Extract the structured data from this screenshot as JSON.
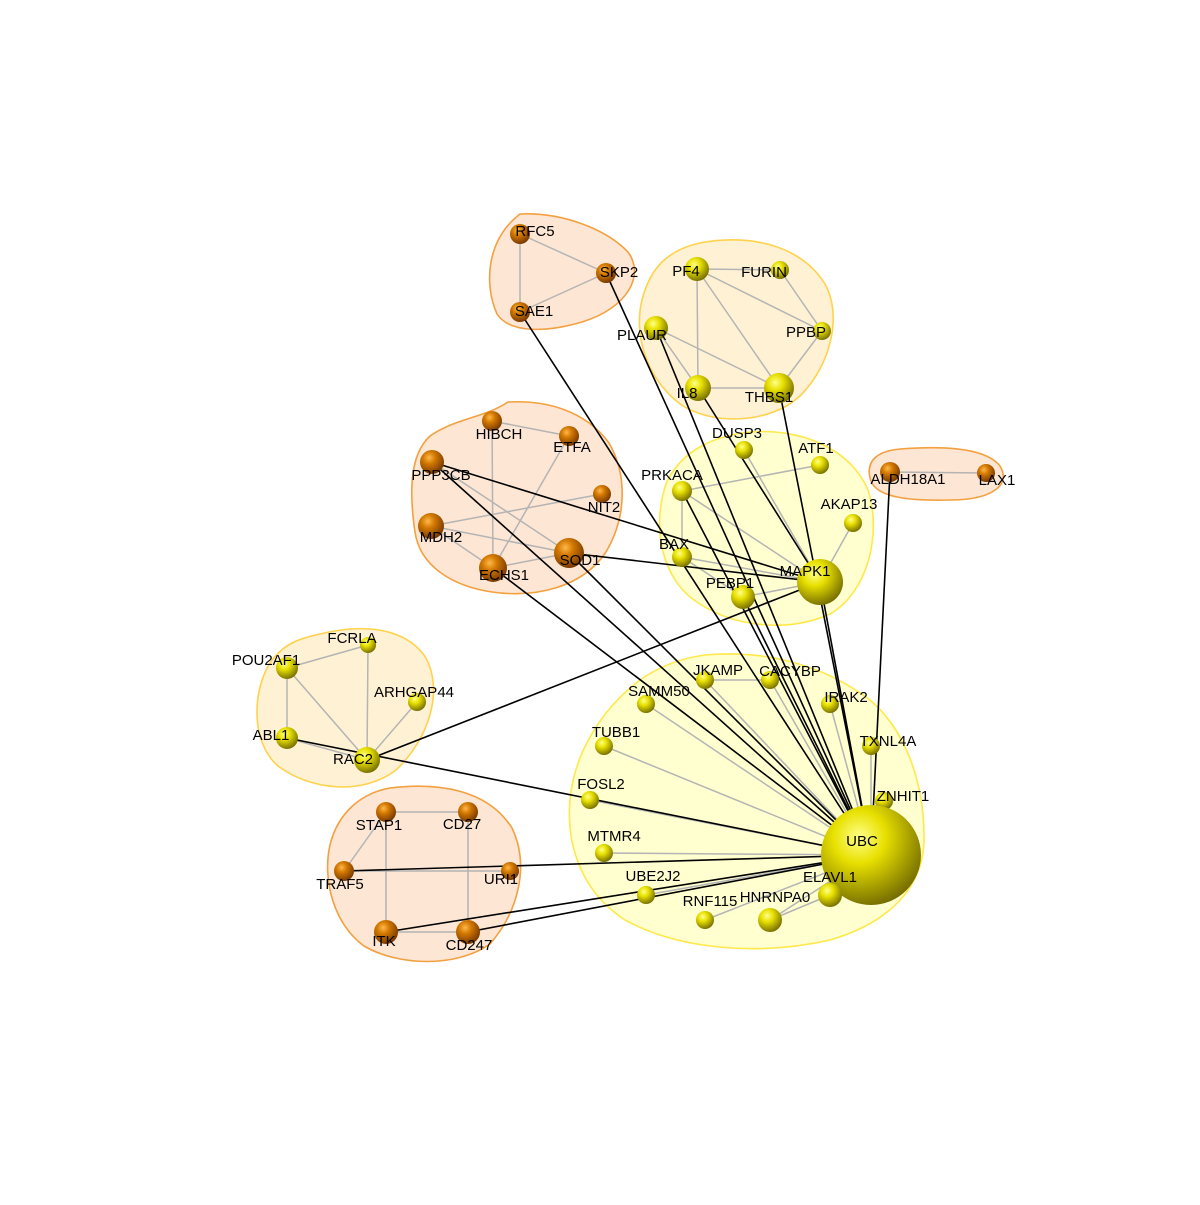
{
  "colors": {
    "yellow_node": "#e8e000",
    "orange_node": "#d27800",
    "yellow_hull_fill": "#ffffc8",
    "yellow_hull_stroke": "#ffe84a",
    "orange_hull_fill": "#fde2cc",
    "orange_hull_stroke": "#f3a040",
    "light_hull_fill": "#fff0cc",
    "light_hull_stroke": "#ffd24d",
    "intra_edge": "#b4b4b4",
    "inter_edge": "#000000"
  },
  "clusters": [
    {
      "name": "cluster-rfc5",
      "theme": "orange",
      "members": [
        "RFC5",
        "SKP2",
        "SAE1"
      ]
    },
    {
      "name": "cluster-pf4",
      "theme": "light",
      "members": [
        "PF4",
        "FURIN",
        "PLAUR",
        "PPBP",
        "IL8",
        "THBS1"
      ]
    },
    {
      "name": "cluster-hibch",
      "theme": "orange",
      "members": [
        "HIBCH",
        "ETFA",
        "PPP3CB",
        "NIT2",
        "MDH2",
        "ECHS1",
        "SOD1"
      ]
    },
    {
      "name": "cluster-mapk1",
      "theme": "yellow",
      "members": [
        "DUSP3",
        "ATF1",
        "PRKACA",
        "AKAP13",
        "BAX",
        "PEBP1",
        "MAPK1"
      ]
    },
    {
      "name": "cluster-aldh18a1",
      "theme": "orange",
      "members": [
        "ALDH18A1",
        "LAX1"
      ]
    },
    {
      "name": "cluster-pou2af1",
      "theme": "light",
      "members": [
        "FCRLA",
        "POU2AF1",
        "ARHGAP44",
        "ABL1",
        "RAC2"
      ]
    },
    {
      "name": "cluster-stap1",
      "theme": "orange",
      "members": [
        "STAP1",
        "CD27",
        "TRAF5",
        "URI1",
        "ITK",
        "CD247"
      ]
    },
    {
      "name": "cluster-ubc",
      "theme": "yellow",
      "members": [
        "JKAMP",
        "CACYBP",
        "SAMM50",
        "IRAK2",
        "TUBB1",
        "TXNL4A",
        "FOSL2",
        "ZNHIT1",
        "MTMR4",
        "UBC",
        "UBE2J2",
        "ELAVL1",
        "RNF115",
        "HNRNPA0"
      ]
    }
  ],
  "nodes": [
    {
      "id": "RFC5",
      "label": "RFC5",
      "color": "orange",
      "size": 1.0
    },
    {
      "id": "SKP2",
      "label": "SKP2",
      "color": "orange",
      "size": 1.0
    },
    {
      "id": "SAE1",
      "label": "SAE1",
      "color": "orange",
      "size": 1.0
    },
    {
      "id": "PF4",
      "label": "PF4",
      "color": "yellow",
      "size": 1.2
    },
    {
      "id": "FURIN",
      "label": "FURIN",
      "color": "yellow",
      "size": 0.9
    },
    {
      "id": "PLAUR",
      "label": "PLAUR",
      "color": "yellow",
      "size": 1.2
    },
    {
      "id": "PPBP",
      "label": "PPBP",
      "color": "yellow",
      "size": 0.9
    },
    {
      "id": "IL8",
      "label": "IL8",
      "color": "yellow",
      "size": 1.3
    },
    {
      "id": "THBS1",
      "label": "THBS1",
      "color": "yellow",
      "size": 1.5
    },
    {
      "id": "HIBCH",
      "label": "HIBCH",
      "color": "orange",
      "size": 1.0
    },
    {
      "id": "ETFA",
      "label": "ETFA",
      "color": "orange",
      "size": 1.0
    },
    {
      "id": "PPP3CB",
      "label": "PPP3CB",
      "color": "orange",
      "size": 1.2
    },
    {
      "id": "NIT2",
      "label": "NIT2",
      "color": "orange",
      "size": 0.9
    },
    {
      "id": "MDH2",
      "label": "MDH2",
      "color": "orange",
      "size": 1.3
    },
    {
      "id": "ECHS1",
      "label": "ECHS1",
      "color": "orange",
      "size": 1.4
    },
    {
      "id": "SOD1",
      "label": "SOD1",
      "color": "orange",
      "size": 1.5
    },
    {
      "id": "DUSP3",
      "label": "DUSP3",
      "color": "yellow",
      "size": 0.9
    },
    {
      "id": "ATF1",
      "label": "ATF1",
      "color": "yellow",
      "size": 0.9
    },
    {
      "id": "PRKACA",
      "label": "PRKACA",
      "color": "yellow",
      "size": 1.0
    },
    {
      "id": "AKAP13",
      "label": "AKAP13",
      "color": "yellow",
      "size": 0.9
    },
    {
      "id": "BAX",
      "label": "BAX",
      "color": "yellow",
      "size": 1.0
    },
    {
      "id": "PEBP1",
      "label": "PEBP1",
      "color": "yellow",
      "size": 1.2
    },
    {
      "id": "MAPK1",
      "label": "MAPK1",
      "color": "yellow",
      "size": 2.3
    },
    {
      "id": "ALDH18A1",
      "label": "ALDH18A1",
      "color": "orange",
      "size": 1.0
    },
    {
      "id": "LAX1",
      "label": "LAX1",
      "color": "orange",
      "size": 0.9
    },
    {
      "id": "FCRLA",
      "label": "FCRLA",
      "color": "yellow",
      "size": 0.8
    },
    {
      "id": "POU2AF1",
      "label": "POU2AF1",
      "color": "yellow",
      "size": 1.1
    },
    {
      "id": "ARHGAP44",
      "label": "ARHGAP44",
      "color": "yellow",
      "size": 0.9
    },
    {
      "id": "ABL1",
      "label": "ABL1",
      "color": "yellow",
      "size": 1.1
    },
    {
      "id": "RAC2",
      "label": "RAC2",
      "color": "yellow",
      "size": 1.3
    },
    {
      "id": "STAP1",
      "label": "STAP1",
      "color": "orange",
      "size": 1.0
    },
    {
      "id": "CD27",
      "label": "CD27",
      "color": "orange",
      "size": 1.0
    },
    {
      "id": "TRAF5",
      "label": "TRAF5",
      "color": "orange",
      "size": 1.0
    },
    {
      "id": "URI1",
      "label": "URI1",
      "color": "orange",
      "size": 0.9
    },
    {
      "id": "ITK",
      "label": "ITK",
      "color": "orange",
      "size": 1.2
    },
    {
      "id": "CD247",
      "label": "CD247",
      "color": "orange",
      "size": 1.2
    },
    {
      "id": "JKAMP",
      "label": "JKAMP",
      "color": "yellow",
      "size": 0.9
    },
    {
      "id": "CACYBP",
      "label": "CACYBP",
      "color": "yellow",
      "size": 0.9
    },
    {
      "id": "SAMM50",
      "label": "SAMM50",
      "color": "yellow",
      "size": 0.9
    },
    {
      "id": "IRAK2",
      "label": "IRAK2",
      "color": "yellow",
      "size": 0.9
    },
    {
      "id": "TUBB1",
      "label": "TUBB1",
      "color": "yellow",
      "size": 0.9
    },
    {
      "id": "TXNL4A",
      "label": "TXNL4A",
      "color": "yellow",
      "size": 0.9
    },
    {
      "id": "FOSL2",
      "label": "FOSL2",
      "color": "yellow",
      "size": 0.9
    },
    {
      "id": "ZNHIT1",
      "label": "ZNHIT1",
      "color": "yellow",
      "size": 0.9
    },
    {
      "id": "MTMR4",
      "label": "MTMR4",
      "color": "yellow",
      "size": 0.9
    },
    {
      "id": "UBC",
      "label": "UBC",
      "color": "yellow",
      "size": 5.0
    },
    {
      "id": "UBE2J2",
      "label": "UBE2J2",
      "color": "yellow",
      "size": 0.9
    },
    {
      "id": "ELAVL1",
      "label": "ELAVL1",
      "color": "yellow",
      "size": 1.2
    },
    {
      "id": "RNF115",
      "label": "RNF115",
      "color": "yellow",
      "size": 0.9
    },
    {
      "id": "HNRNPA0",
      "label": "HNRNPA0",
      "color": "yellow",
      "size": 1.2
    }
  ],
  "edges": [
    {
      "s": "RFC5",
      "t": "SKP2",
      "kind": "intra"
    },
    {
      "s": "RFC5",
      "t": "SAE1",
      "kind": "intra"
    },
    {
      "s": "SAE1",
      "t": "SKP2",
      "kind": "intra"
    },
    {
      "s": "PF4",
      "t": "FURIN",
      "kind": "intra"
    },
    {
      "s": "PF4",
      "t": "PPBP",
      "kind": "intra"
    },
    {
      "s": "PF4",
      "t": "IL8",
      "kind": "intra"
    },
    {
      "s": "PF4",
      "t": "THBS1",
      "kind": "intra"
    },
    {
      "s": "FURIN",
      "t": "PPBP",
      "kind": "intra"
    },
    {
      "s": "PPBP",
      "t": "THBS1",
      "kind": "intra"
    },
    {
      "s": "PLAUR",
      "t": "IL8",
      "kind": "intra"
    },
    {
      "s": "PLAUR",
      "t": "THBS1",
      "kind": "intra"
    },
    {
      "s": "IL8",
      "t": "THBS1",
      "kind": "intra"
    },
    {
      "s": "HIBCH",
      "t": "ETFA",
      "kind": "intra"
    },
    {
      "s": "HIBCH",
      "t": "ECHS1",
      "kind": "intra"
    },
    {
      "s": "ETFA",
      "t": "ECHS1",
      "kind": "intra"
    },
    {
      "s": "PPP3CB",
      "t": "SOD1",
      "kind": "intra"
    },
    {
      "s": "NIT2",
      "t": "MDH2",
      "kind": "intra"
    },
    {
      "s": "MDH2",
      "t": "ECHS1",
      "kind": "intra"
    },
    {
      "s": "MDH2",
      "t": "SOD1",
      "kind": "intra"
    },
    {
      "s": "ECHS1",
      "t": "SOD1",
      "kind": "intra"
    },
    {
      "s": "DUSP3",
      "t": "MAPK1",
      "kind": "intra"
    },
    {
      "s": "ATF1",
      "t": "PRKACA",
      "kind": "intra"
    },
    {
      "s": "PRKACA",
      "t": "BAX",
      "kind": "intra"
    },
    {
      "s": "PRKACA",
      "t": "MAPK1",
      "kind": "intra"
    },
    {
      "s": "AKAP13",
      "t": "MAPK1",
      "kind": "intra"
    },
    {
      "s": "BAX",
      "t": "MAPK1",
      "kind": "intra"
    },
    {
      "s": "BAX",
      "t": "PEBP1",
      "kind": "intra"
    },
    {
      "s": "PEBP1",
      "t": "MAPK1",
      "kind": "intra"
    },
    {
      "s": "ALDH18A1",
      "t": "LAX1",
      "kind": "intra"
    },
    {
      "s": "POU2AF1",
      "t": "FCRLA",
      "kind": "intra"
    },
    {
      "s": "POU2AF1",
      "t": "ABL1",
      "kind": "intra"
    },
    {
      "s": "POU2AF1",
      "t": "RAC2",
      "kind": "intra"
    },
    {
      "s": "FCRLA",
      "t": "RAC2",
      "kind": "intra"
    },
    {
      "s": "ARHGAP44",
      "t": "RAC2",
      "kind": "intra"
    },
    {
      "s": "ABL1",
      "t": "RAC2",
      "kind": "intra"
    },
    {
      "s": "STAP1",
      "t": "CD27",
      "kind": "intra"
    },
    {
      "s": "STAP1",
      "t": "ITK",
      "kind": "intra"
    },
    {
      "s": "STAP1",
      "t": "TRAF5",
      "kind": "intra"
    },
    {
      "s": "CD27",
      "t": "CD247",
      "kind": "intra"
    },
    {
      "s": "TRAF5",
      "t": "URI1",
      "kind": "intra"
    },
    {
      "s": "ITK",
      "t": "CD247",
      "kind": "intra"
    },
    {
      "s": "JKAMP",
      "t": "UBC",
      "kind": "intra"
    },
    {
      "s": "JKAMP",
      "t": "CACYBP",
      "kind": "intra"
    },
    {
      "s": "CACYBP",
      "t": "UBC",
      "kind": "intra"
    },
    {
      "s": "SAMM50",
      "t": "UBC",
      "kind": "intra"
    },
    {
      "s": "IRAK2",
      "t": "UBC",
      "kind": "intra"
    },
    {
      "s": "TUBB1",
      "t": "UBC",
      "kind": "intra"
    },
    {
      "s": "TXNL4A",
      "t": "UBC",
      "kind": "intra"
    },
    {
      "s": "FOSL2",
      "t": "UBC",
      "kind": "intra"
    },
    {
      "s": "ZNHIT1",
      "t": "UBC",
      "kind": "intra"
    },
    {
      "s": "MTMR4",
      "t": "UBC",
      "kind": "intra"
    },
    {
      "s": "UBE2J2",
      "t": "UBC",
      "kind": "intra"
    },
    {
      "s": "ELAVL1",
      "t": "UBC",
      "kind": "intra"
    },
    {
      "s": "RNF115",
      "t": "UBC",
      "kind": "intra"
    },
    {
      "s": "HNRNPA0",
      "t": "UBC",
      "kind": "intra"
    },
    {
      "s": "ELAVL1",
      "t": "HNRNPA0",
      "kind": "intra"
    },
    {
      "s": "SAE1",
      "t": "UBC",
      "kind": "inter"
    },
    {
      "s": "SKP2",
      "t": "UBC",
      "kind": "inter"
    },
    {
      "s": "IL8",
      "t": "MAPK1",
      "kind": "inter"
    },
    {
      "s": "PLAUR",
      "t": "UBC",
      "kind": "inter"
    },
    {
      "s": "THBS1",
      "t": "UBC",
      "kind": "inter"
    },
    {
      "s": "PPP3CB",
      "t": "MAPK1",
      "kind": "inter"
    },
    {
      "s": "PPP3CB",
      "t": "UBC",
      "kind": "inter"
    },
    {
      "s": "SOD1",
      "t": "MAPK1",
      "kind": "inter"
    },
    {
      "s": "SOD1",
      "t": "UBC",
      "kind": "inter"
    },
    {
      "s": "ECHS1",
      "t": "UBC",
      "kind": "inter"
    },
    {
      "s": "PRKACA",
      "t": "UBC",
      "kind": "inter"
    },
    {
      "s": "PEBP1",
      "t": "UBC",
      "kind": "inter"
    },
    {
      "s": "MAPK1",
      "t": "UBC",
      "kind": "inter"
    },
    {
      "s": "ALDH18A1",
      "t": "UBC",
      "kind": "inter"
    },
    {
      "s": "RAC2",
      "t": "MAPK1",
      "kind": "inter"
    },
    {
      "s": "ABL1",
      "t": "UBC",
      "kind": "inter"
    },
    {
      "s": "TRAF5",
      "t": "UBC",
      "kind": "inter"
    },
    {
      "s": "ITK",
      "t": "UBC",
      "kind": "inter"
    },
    {
      "s": "CD247",
      "t": "UBC",
      "kind": "inter"
    }
  ]
}
